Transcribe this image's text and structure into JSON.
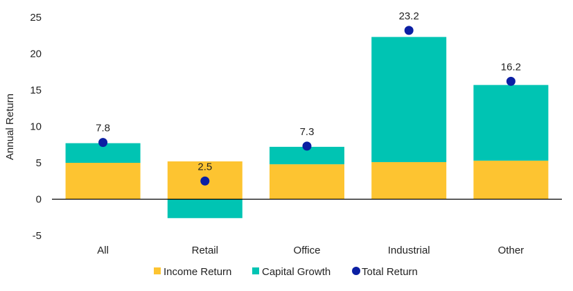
{
  "colors": {
    "income": "#FDC431",
    "capital": "#00C4B3",
    "total": "#0B1FA3",
    "axis": "#000000"
  },
  "chart_data": {
    "type": "bar",
    "stacked": true,
    "categories": [
      "All",
      "Retail",
      "Office",
      "Industrial",
      "Other"
    ],
    "series": [
      {
        "name": "Income Return",
        "kind": "bar",
        "values": [
          5.0,
          5.2,
          4.8,
          5.1,
          5.3
        ]
      },
      {
        "name": "Capital Growth",
        "kind": "bar",
        "values": [
          2.7,
          -2.6,
          2.4,
          17.2,
          10.4
        ]
      },
      {
        "name": "Total Return",
        "kind": "point",
        "values": [
          7.8,
          2.5,
          7.3,
          23.2,
          16.2
        ]
      }
    ],
    "data_labels": [
      "7.8",
      "2.5",
      "7.3",
      "23.2",
      "16.2"
    ],
    "ylabel": "Annual Return",
    "xlabel": "",
    "ylim": [
      -5,
      25
    ],
    "yticks": [
      "-5",
      "0",
      "5",
      "10",
      "15",
      "20",
      "25"
    ],
    "grid": false,
    "legend_position": "bottom"
  }
}
